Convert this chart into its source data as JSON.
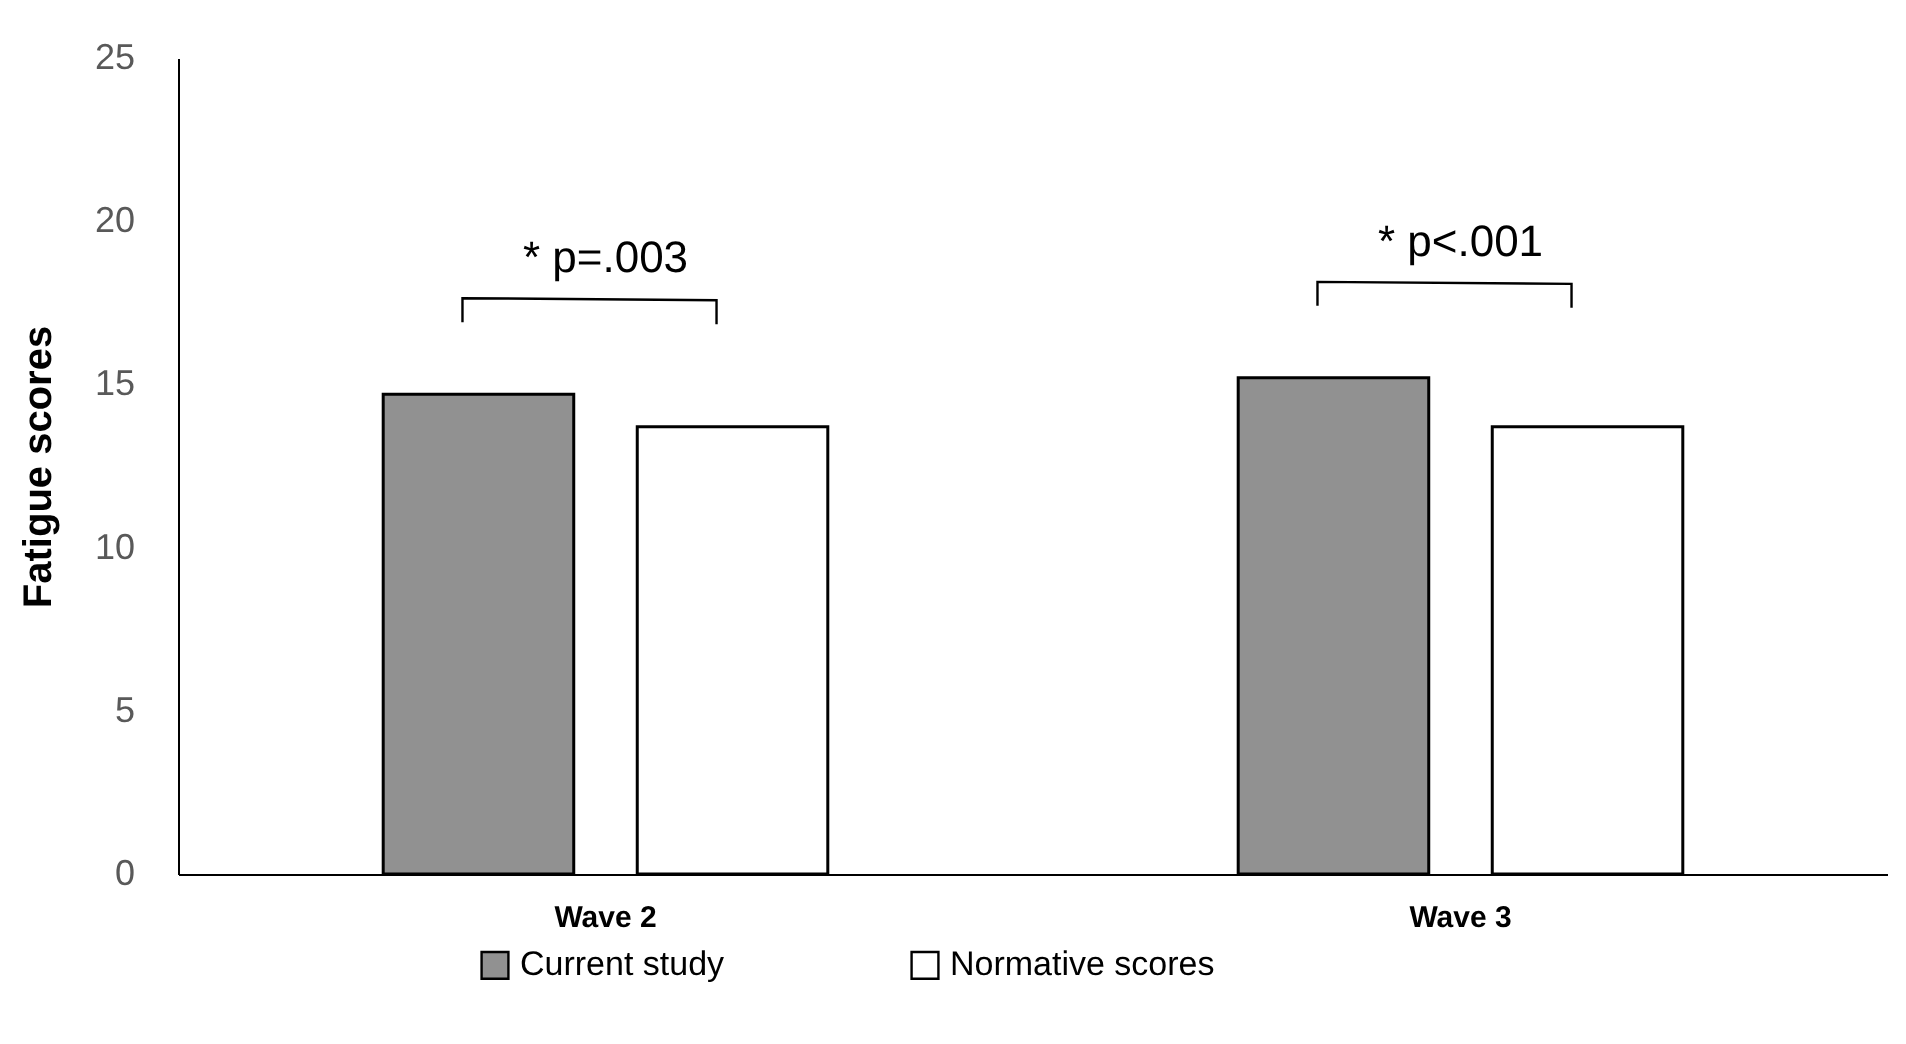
{
  "chart_data": {
    "type": "bar",
    "ylabel": "Fatigue scores",
    "categories": [
      "Wave 2",
      "Wave 3"
    ],
    "series": [
      {
        "name": "Current study",
        "color": "#919191",
        "values": [
          14.7,
          15.2
        ]
      },
      {
        "name": "Normative scores",
        "color": "#ffffff",
        "values": [
          13.7,
          13.7
        ]
      }
    ],
    "ylim": [
      0,
      25
    ],
    "yticks": [
      0,
      5,
      10,
      15,
      20,
      25
    ],
    "grid": false,
    "legend": "bottom",
    "annotations": [
      "* p=.003",
      "* p<.001"
    ]
  }
}
